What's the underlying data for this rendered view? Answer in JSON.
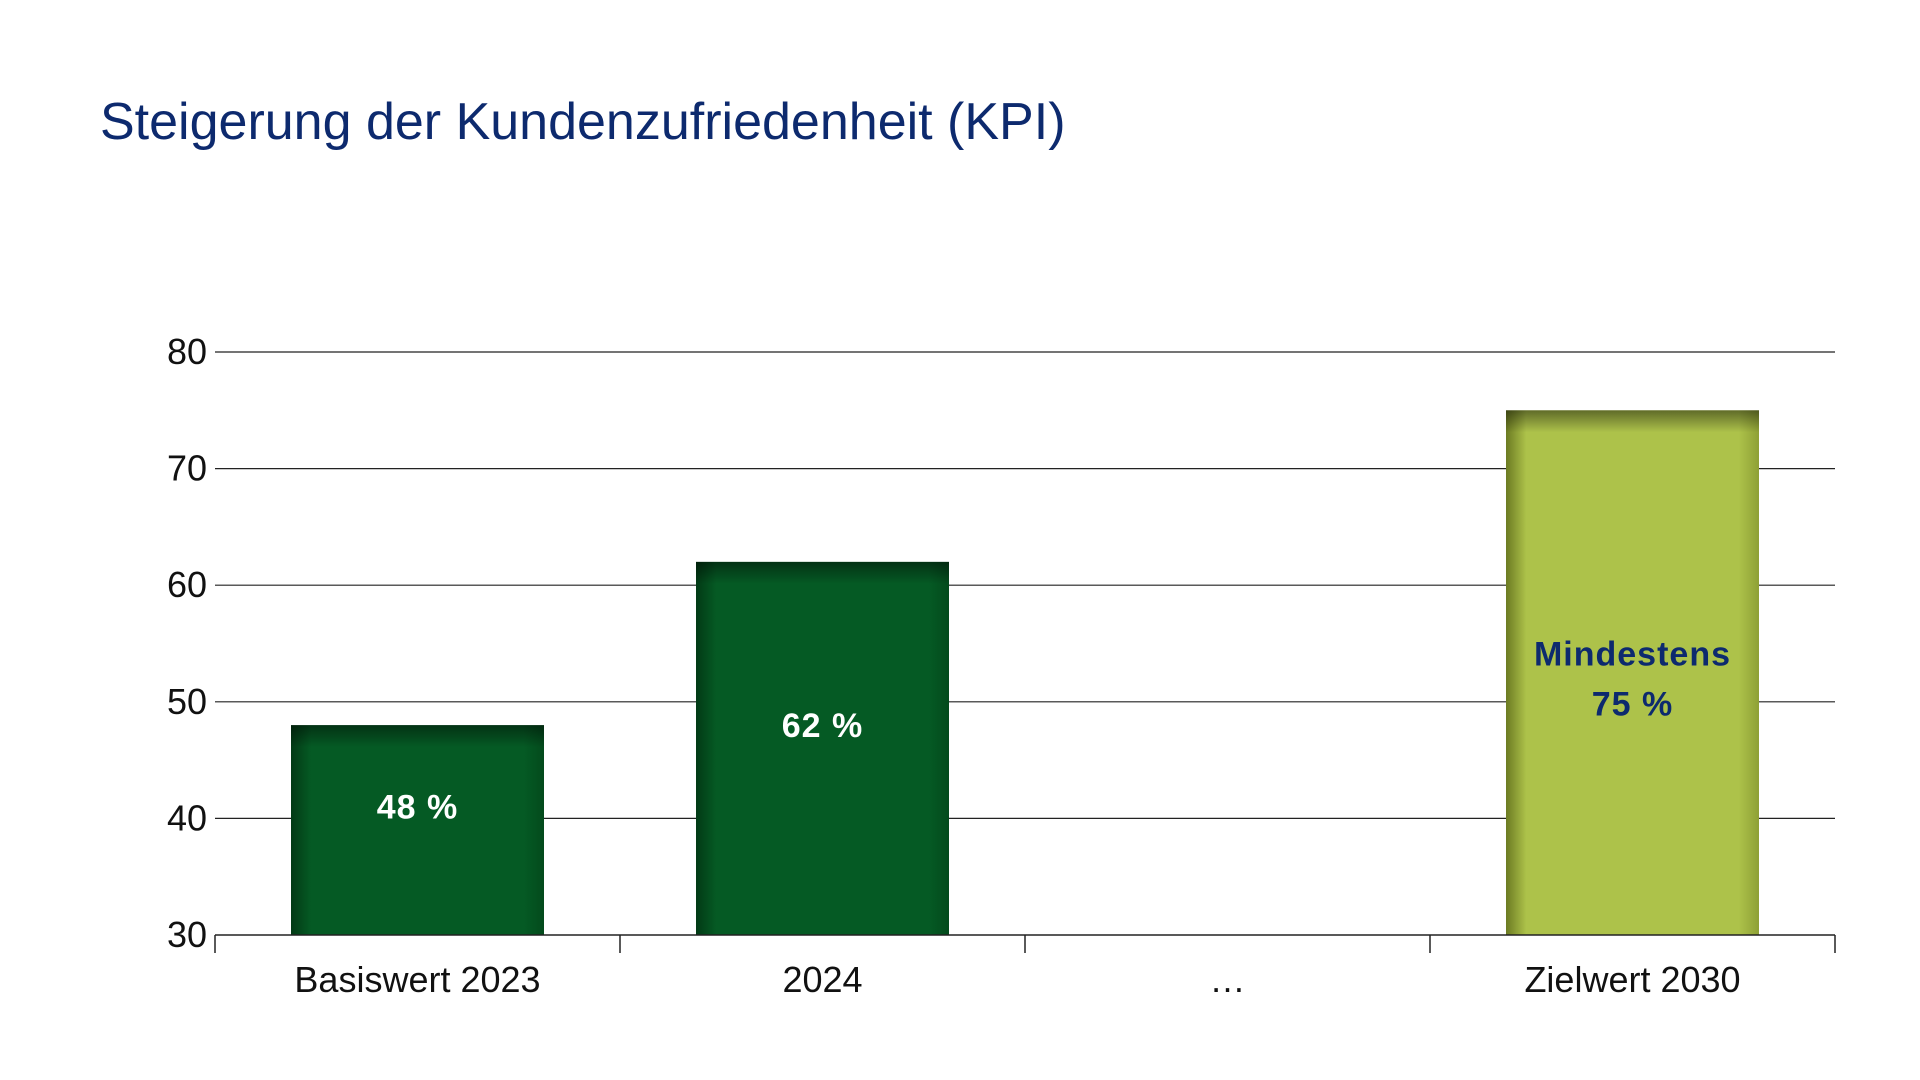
{
  "chart_data": {
    "type": "bar",
    "title": "Steigerung der Kundenzufriedenheit (KPI)",
    "categories": [
      "Basiswert 2023",
      "2024",
      "…",
      "Zielwert 2030"
    ],
    "values": [
      48,
      62,
      null,
      75
    ],
    "data_labels": [
      [
        "48 %"
      ],
      [
        "62 %"
      ],
      [],
      [
        "Mindestens",
        "75 %"
      ]
    ],
    "ylim": [
      30,
      80
    ],
    "yticks": [
      30,
      40,
      50,
      60,
      70,
      80
    ],
    "grid": true,
    "xlabel": "",
    "ylabel": "",
    "colors": {
      "title": "#0d2a6e",
      "bar_actual": "#055a24",
      "bar_actual_edge": "#023a15",
      "bar_target": "#adc24a",
      "bar_target_edge": "#6b7a22",
      "label_on_actual": "#ffffff",
      "label_on_target": "#0d2a6e",
      "grid": "#222222"
    }
  }
}
